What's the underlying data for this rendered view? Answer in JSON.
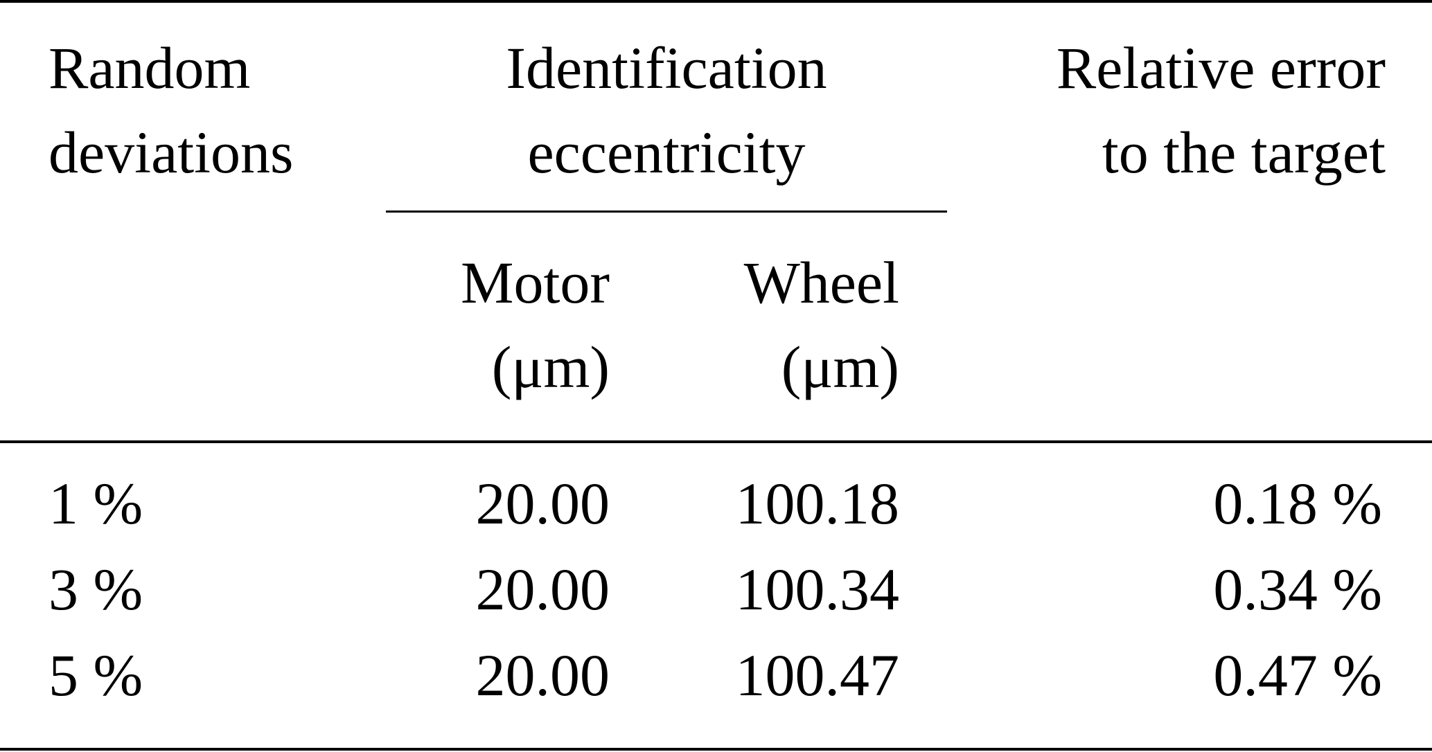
{
  "table": {
    "header": {
      "col1_line1": "Random",
      "col1_line2": "deviations",
      "group_line1": "Identification",
      "group_line2": "eccentricity",
      "motor_line1": "Motor",
      "motor_line2": "(μm)",
      "wheel_line1": "Wheel",
      "wheel_line2": "(μm)",
      "col4_line1": "Relative error",
      "col4_line2": "to the target"
    },
    "rows": [
      {
        "deviation": "1 %",
        "motor": "20.00",
        "wheel": "100.18",
        "error": "0.18 %"
      },
      {
        "deviation": "3 %",
        "motor": "20.00",
        "wheel": "100.34",
        "error": "0.34 %"
      },
      {
        "deviation": "5 %",
        "motor": "20.00",
        "wheel": "100.47",
        "error": "0.47 %"
      }
    ]
  }
}
